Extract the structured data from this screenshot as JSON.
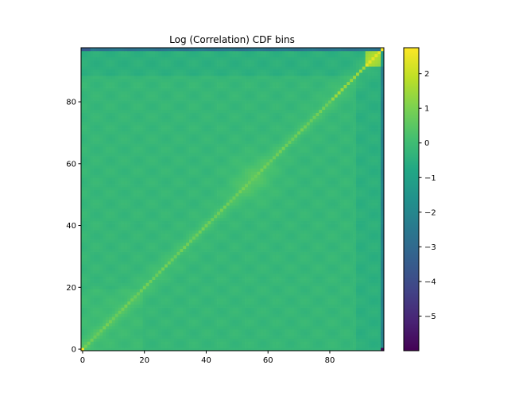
{
  "chart_data": {
    "type": "heatmap",
    "title": "Log (Correlation)  CDF bins",
    "xlabel": "",
    "ylabel": "",
    "n": 98,
    "xlim": [
      -0.5,
      97.5
    ],
    "ylim": [
      -0.5,
      97.5
    ],
    "origin": "lower",
    "colormap": "viridis",
    "clim": [
      -6.0,
      2.75
    ],
    "x_ticks": [
      0,
      20,
      40,
      60,
      80
    ],
    "x_tick_labels": [
      "0",
      "20",
      "40",
      "60",
      "80"
    ],
    "y_ticks": [
      0,
      20,
      40,
      60,
      80
    ],
    "y_tick_labels": [
      "0",
      "20",
      "40",
      "60",
      "80"
    ],
    "colorbar_ticks": [
      2,
      1,
      0,
      -1,
      -2,
      -3,
      -4,
      -5
    ],
    "colorbar_tick_labels": [
      "2",
      "1",
      "0",
      "−1",
      "−2",
      "−3",
      "−4",
      "−5"
    ],
    "value_description": {
      "background_level": -0.2,
      "diagonal_level": 0.8,
      "top_right_block_rows": [
        92,
        97
      ],
      "top_right_block_level": 1.8,
      "corner_value": 2.7,
      "last_row_level": -2.6,
      "last_column_level": -2.1,
      "min_value": -6.0
    },
    "grid": false,
    "legend": "colorbar-right"
  }
}
